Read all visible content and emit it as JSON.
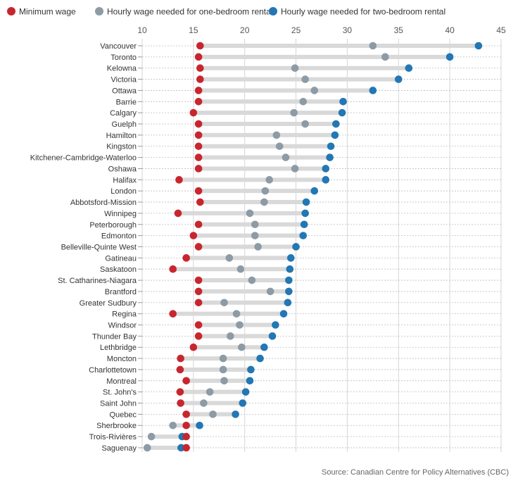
{
  "chart_data": {
    "type": "dot-range",
    "title": "",
    "xlabel": "",
    "ylabel": "",
    "xlim": [
      10,
      45
    ],
    "x_ticks": [
      10,
      15,
      20,
      25,
      30,
      35,
      40,
      45
    ],
    "grid": true,
    "legend_position": "top-left",
    "series": [
      {
        "name": "Minimum wage",
        "color": "#c8262e"
      },
      {
        "name": "Hourly wage needed for one-bedroom rental",
        "color": "#8c9ba5"
      },
      {
        "name": "Hourly wage needed for two-bedroom rental",
        "color": "#2277b4"
      }
    ],
    "source": "Source: Canadian Centre for Policy Alternatives (CBC)",
    "rows": [
      {
        "city": "Vancouver",
        "min": 15.65,
        "one": 32.5,
        "two": 42.8
      },
      {
        "city": "Toronto",
        "min": 15.5,
        "one": 33.7,
        "two": 40.0
      },
      {
        "city": "Kelowna",
        "min": 15.65,
        "one": 24.9,
        "two": 36.0
      },
      {
        "city": "Victoria",
        "min": 15.65,
        "one": 25.9,
        "two": 35.0
      },
      {
        "city": "Ottawa",
        "min": 15.5,
        "one": 26.8,
        "two": 32.5
      },
      {
        "city": "Barrie",
        "min": 15.5,
        "one": 25.7,
        "two": 29.6
      },
      {
        "city": "Calgary",
        "min": 15.0,
        "one": 24.8,
        "two": 29.5
      },
      {
        "city": "Guelph",
        "min": 15.5,
        "one": 25.9,
        "two": 28.9
      },
      {
        "city": "Hamilton",
        "min": 15.5,
        "one": 23.1,
        "two": 28.8
      },
      {
        "city": "Kingston",
        "min": 15.5,
        "one": 23.4,
        "two": 28.4
      },
      {
        "city": "Kitchener-Cambridge-Waterloo",
        "min": 15.5,
        "one": 24.0,
        "two": 28.3
      },
      {
        "city": "Oshawa",
        "min": 15.5,
        "one": 24.9,
        "two": 27.9
      },
      {
        "city": "Halifax",
        "min": 13.6,
        "one": 22.4,
        "two": 27.9
      },
      {
        "city": "London",
        "min": 15.5,
        "one": 22.0,
        "two": 26.8
      },
      {
        "city": "Abbotsford-Mission",
        "min": 15.65,
        "one": 21.9,
        "two": 26.0
      },
      {
        "city": "Winnipeg",
        "min": 13.5,
        "one": 20.5,
        "two": 25.9
      },
      {
        "city": "Peterborough",
        "min": 15.5,
        "one": 21.0,
        "two": 25.8
      },
      {
        "city": "Edmonton",
        "min": 15.0,
        "one": 21.0,
        "two": 25.7
      },
      {
        "city": "Belleville-Quinte West",
        "min": 15.5,
        "one": 21.3,
        "two": 25.0
      },
      {
        "city": "Gatineau",
        "min": 14.3,
        "one": 18.5,
        "two": 24.5
      },
      {
        "city": "Saskatoon",
        "min": 13.0,
        "one": 19.6,
        "two": 24.4
      },
      {
        "city": "St. Catharines-Niagara",
        "min": 15.5,
        "one": 20.7,
        "two": 24.3
      },
      {
        "city": "Brantford",
        "min": 15.5,
        "one": 22.5,
        "two": 24.3
      },
      {
        "city": "Greater Sudbury",
        "min": 15.5,
        "one": 18.0,
        "two": 24.2
      },
      {
        "city": "Regina",
        "min": 13.0,
        "one": 19.2,
        "two": 23.8
      },
      {
        "city": "Windsor",
        "min": 15.5,
        "one": 19.5,
        "two": 23.0
      },
      {
        "city": "Thunder Bay",
        "min": 15.5,
        "one": 18.6,
        "two": 22.7
      },
      {
        "city": "Lethbridge",
        "min": 15.0,
        "one": 19.7,
        "two": 21.9
      },
      {
        "city": "Moncton",
        "min": 13.75,
        "one": 17.9,
        "two": 21.5
      },
      {
        "city": "Charlottetown",
        "min": 13.7,
        "one": 17.9,
        "two": 20.6
      },
      {
        "city": "Montreal",
        "min": 14.3,
        "one": 18.0,
        "two": 20.5
      },
      {
        "city": "St. John's",
        "min": 13.7,
        "one": 16.6,
        "two": 20.1
      },
      {
        "city": "Saint John",
        "min": 13.75,
        "one": 16.0,
        "two": 19.8
      },
      {
        "city": "Quebec",
        "min": 14.3,
        "one": 16.9,
        "two": 19.1
      },
      {
        "city": "Sherbrooke",
        "min": 14.3,
        "one": 13.0,
        "two": 15.6
      },
      {
        "city": "Trois-Rivières",
        "min": 14.3,
        "one": 10.9,
        "two": 13.9
      },
      {
        "city": "Saguenay",
        "min": 14.3,
        "one": 10.5,
        "two": 13.8
      }
    ]
  }
}
